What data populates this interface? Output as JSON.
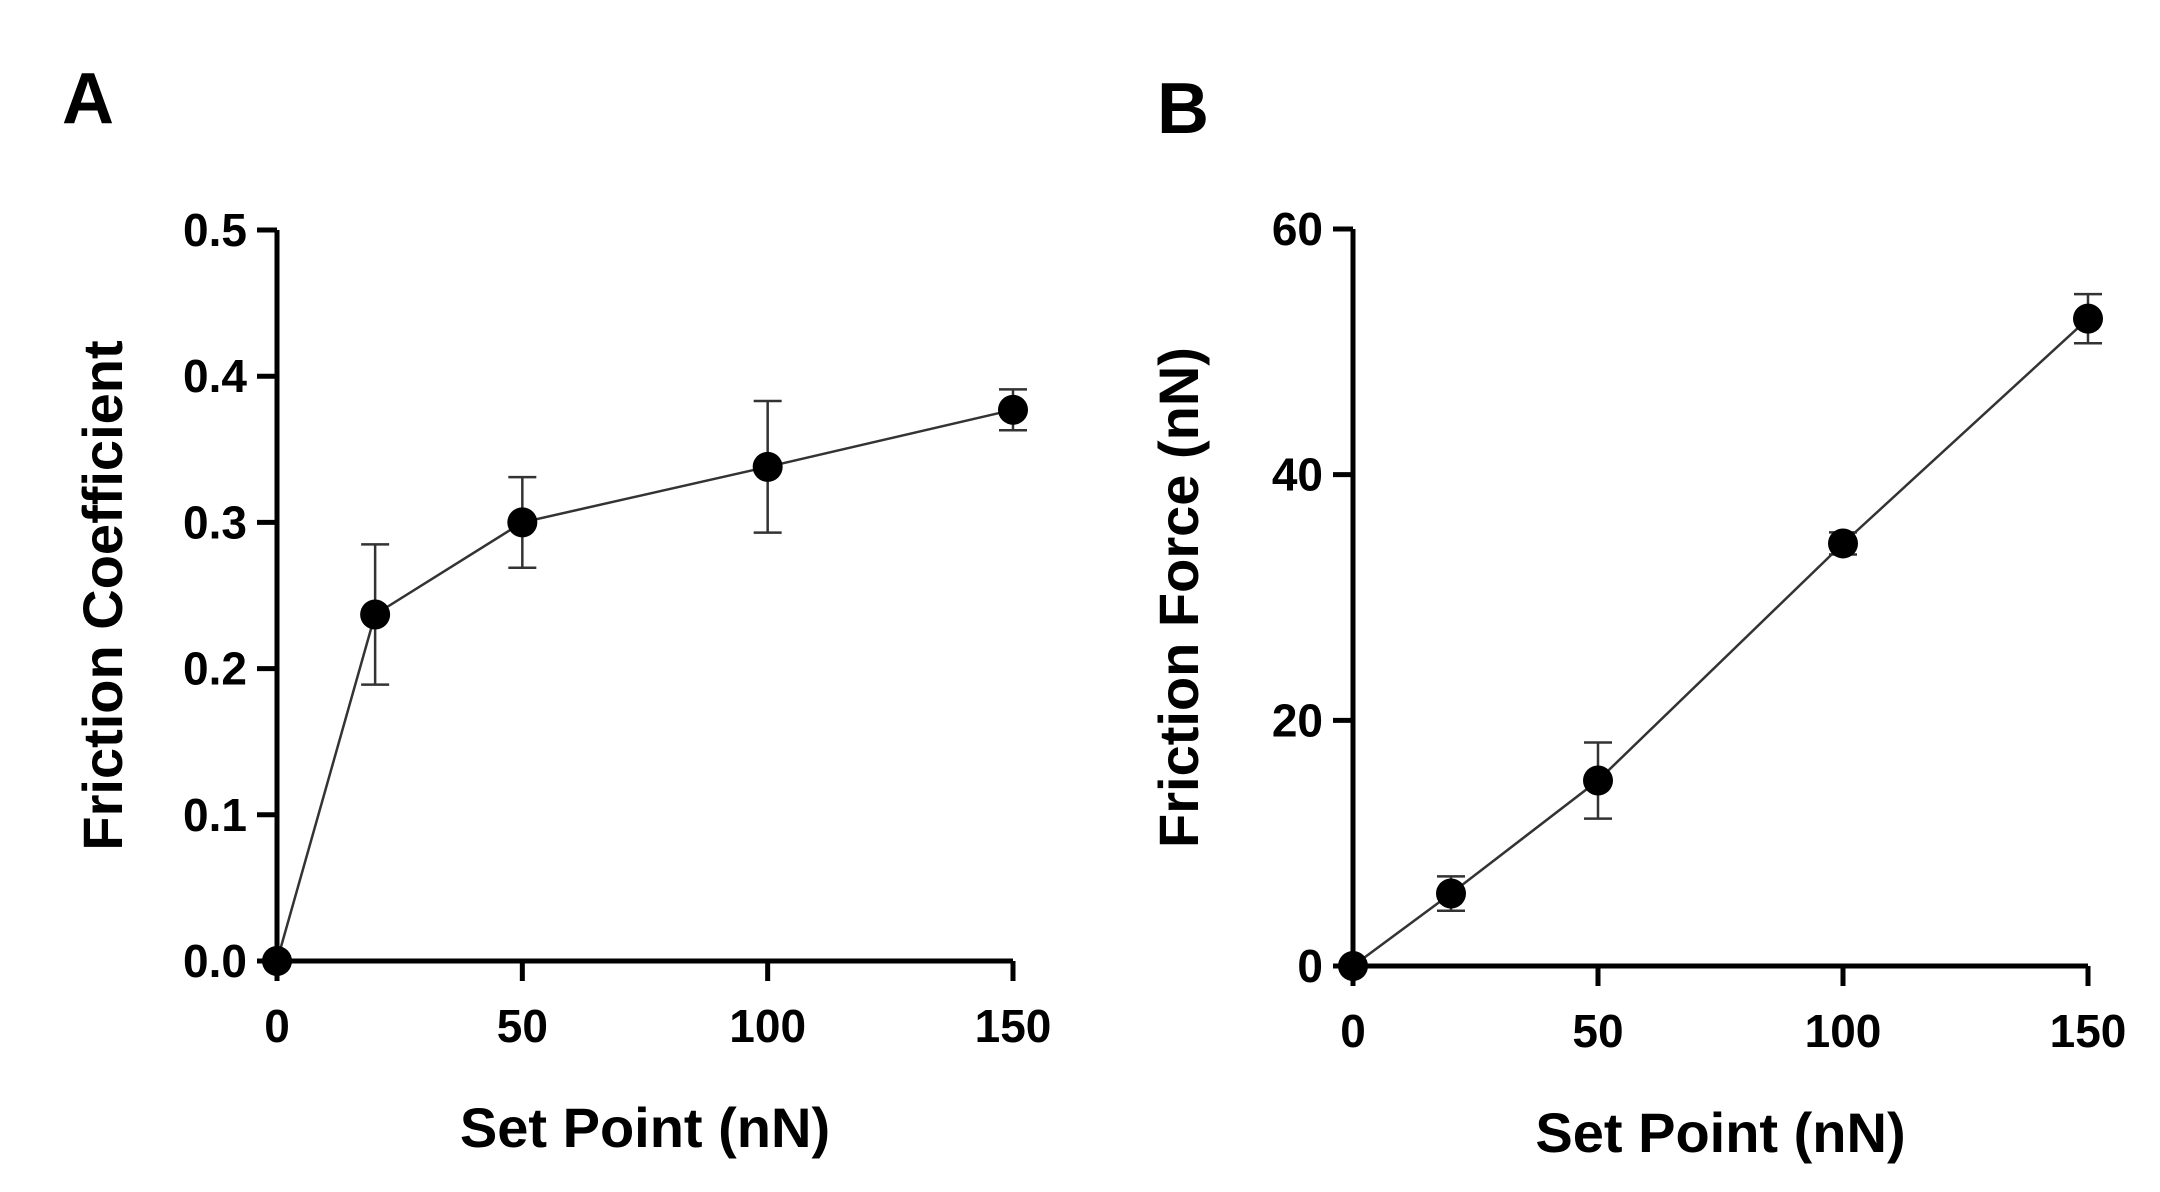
{
  "chart_data": [
    {
      "panel": "A",
      "type": "line",
      "title": "",
      "xlabel": "Set Point (nN)",
      "ylabel": "Friction Coefficient",
      "xlim": [
        0,
        150
      ],
      "ylim": [
        0,
        0.5
      ],
      "xticks": [
        0,
        50,
        100,
        150
      ],
      "yticks": [
        0.0,
        0.1,
        0.2,
        0.3,
        0.4,
        0.5
      ],
      "xtick_labels": [
        "0",
        "50",
        "100",
        "150"
      ],
      "ytick_labels": [
        "0.0",
        "0.1",
        "0.2",
        "0.3",
        "0.4",
        "0.5"
      ],
      "series": [
        {
          "name": "Friction Coefficient",
          "x": [
            0,
            20,
            50,
            100,
            150
          ],
          "y": [
            0.0,
            0.237,
            0.3,
            0.338,
            0.377
          ],
          "err": [
            0.0,
            0.048,
            0.031,
            0.045,
            0.014
          ]
        }
      ]
    },
    {
      "panel": "B",
      "type": "line",
      "title": "",
      "xlabel": "Set Point (nN)",
      "ylabel": "Friction Force (nN)",
      "xlim": [
        0,
        150
      ],
      "ylim": [
        0,
        60
      ],
      "xticks": [
        0,
        50,
        100,
        150
      ],
      "yticks": [
        0,
        20,
        40,
        60
      ],
      "xtick_labels": [
        "0",
        "50",
        "100",
        "150"
      ],
      "ytick_labels": [
        "0",
        "20",
        "40",
        "60"
      ],
      "series": [
        {
          "name": "Friction Force",
          "x": [
            0,
            20,
            50,
            100,
            150
          ],
          "y": [
            0.0,
            5.9,
            15.1,
            34.4,
            52.7
          ],
          "err": [
            0.0,
            1.4,
            3.1,
            0.9,
            2.0
          ]
        }
      ]
    }
  ],
  "colors": {
    "marker": "#000000",
    "line": "#333333",
    "axis": "#000000"
  }
}
